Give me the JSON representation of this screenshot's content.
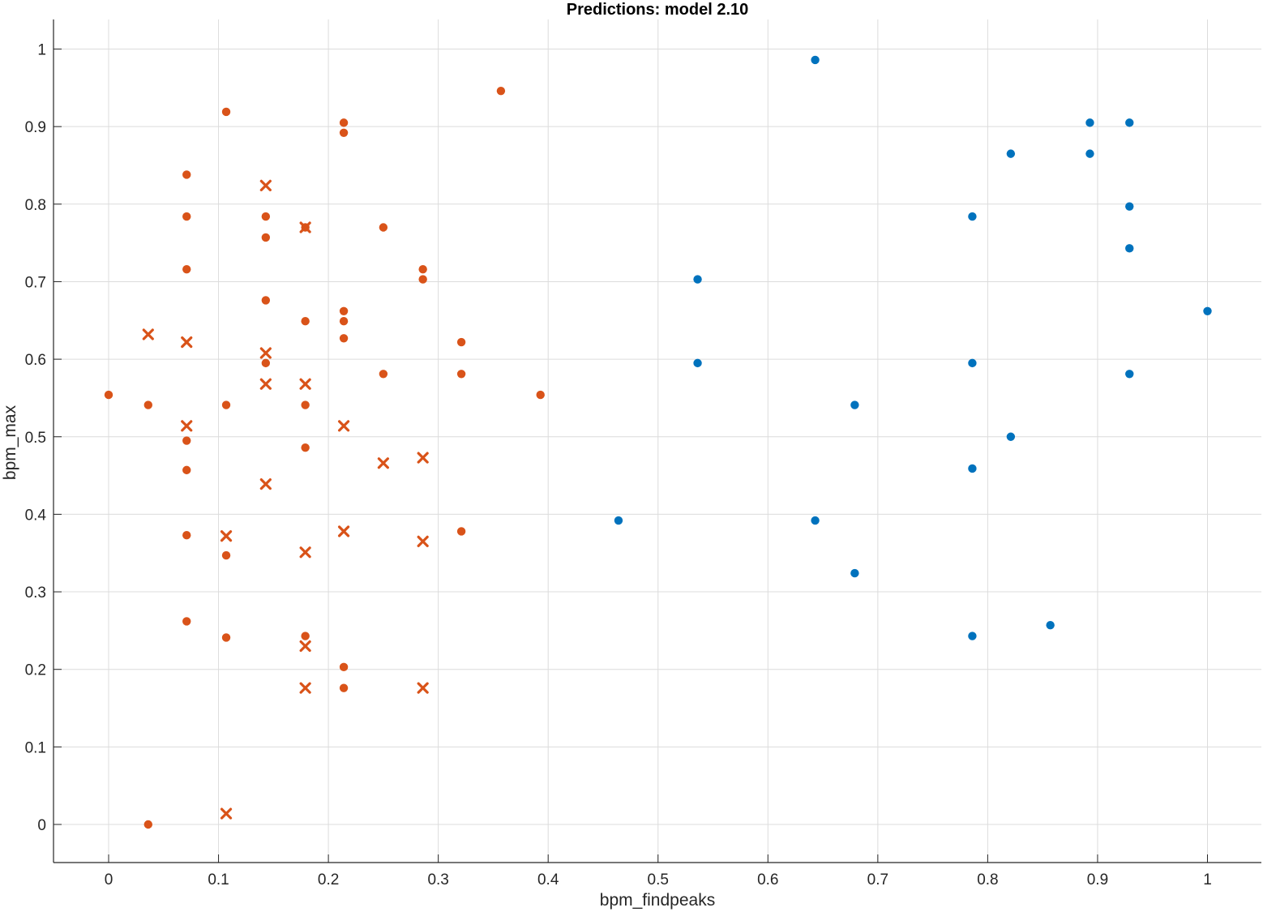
{
  "chart_data": {
    "type": "scatter",
    "title": "Predictions: model 2.10",
    "xlabel": "bpm_findpeaks",
    "ylabel": "bpm_max",
    "xlim": [
      -0.05,
      1.05
    ],
    "ylim": [
      -0.05,
      1.03
    ],
    "xticks": [
      "0",
      "0.1",
      "0.2",
      "0.3",
      "0.4",
      "0.5",
      "0.6",
      "0.7",
      "0.8",
      "0.9",
      "1"
    ],
    "yticks": [
      "0",
      "0.1",
      "0.2",
      "0.3",
      "0.4",
      "0.5",
      "0.6",
      "0.7",
      "0.8",
      "0.9",
      "1"
    ],
    "grid": true,
    "legend": "none",
    "colors": {
      "blue": "#0072bd",
      "orange": "#d95319"
    },
    "series": [
      {
        "marker": "dot",
        "color": "#0072bd",
        "points": [
          [
            0.643,
            0.986
          ],
          [
            0.536,
            0.703
          ],
          [
            0.536,
            0.595
          ],
          [
            0.464,
            0.392
          ],
          [
            0.679,
            0.541
          ],
          [
            0.643,
            0.392
          ],
          [
            0.679,
            0.324
          ],
          [
            0.786,
            0.784
          ],
          [
            0.786,
            0.595
          ],
          [
            0.786,
            0.459
          ],
          [
            0.786,
            0.243
          ],
          [
            0.821,
            0.865
          ],
          [
            0.821,
            0.5
          ],
          [
            0.857,
            0.257
          ],
          [
            0.893,
            0.905
          ],
          [
            0.893,
            0.865
          ],
          [
            0.929,
            0.905
          ],
          [
            0.929,
            0.797
          ],
          [
            0.929,
            0.743
          ],
          [
            0.929,
            0.581
          ],
          [
            1.0,
            0.662
          ]
        ]
      },
      {
        "marker": "dot",
        "color": "#d95319",
        "points": [
          [
            0.0,
            0.554
          ],
          [
            0.036,
            0.541
          ],
          [
            0.036,
            0.0
          ],
          [
            0.071,
            0.838
          ],
          [
            0.071,
            0.784
          ],
          [
            0.071,
            0.716
          ],
          [
            0.071,
            0.495
          ],
          [
            0.071,
            0.457
          ],
          [
            0.071,
            0.373
          ],
          [
            0.071,
            0.262
          ],
          [
            0.107,
            0.919
          ],
          [
            0.107,
            0.541
          ],
          [
            0.107,
            0.347
          ],
          [
            0.107,
            0.241
          ],
          [
            0.143,
            0.784
          ],
          [
            0.143,
            0.757
          ],
          [
            0.143,
            0.676
          ],
          [
            0.143,
            0.595
          ],
          [
            0.179,
            0.77
          ],
          [
            0.179,
            0.649
          ],
          [
            0.179,
            0.541
          ],
          [
            0.179,
            0.486
          ],
          [
            0.179,
            0.243
          ],
          [
            0.214,
            0.905
          ],
          [
            0.214,
            0.892
          ],
          [
            0.214,
            0.662
          ],
          [
            0.214,
            0.649
          ],
          [
            0.214,
            0.627
          ],
          [
            0.214,
            0.203
          ],
          [
            0.214,
            0.176
          ],
          [
            0.25,
            0.77
          ],
          [
            0.25,
            0.581
          ],
          [
            0.286,
            0.716
          ],
          [
            0.286,
            0.703
          ],
          [
            0.321,
            0.622
          ],
          [
            0.321,
            0.581
          ],
          [
            0.321,
            0.378
          ],
          [
            0.357,
            0.946
          ],
          [
            0.393,
            0.554
          ]
        ]
      },
      {
        "marker": "x",
        "color": "#d95319",
        "points": [
          [
            0.036,
            0.632
          ],
          [
            0.071,
            0.622
          ],
          [
            0.071,
            0.514
          ],
          [
            0.107,
            0.372
          ],
          [
            0.107,
            0.014
          ],
          [
            0.143,
            0.824
          ],
          [
            0.143,
            0.608
          ],
          [
            0.143,
            0.568
          ],
          [
            0.143,
            0.439
          ],
          [
            0.179,
            0.77
          ],
          [
            0.179,
            0.568
          ],
          [
            0.179,
            0.351
          ],
          [
            0.179,
            0.23
          ],
          [
            0.179,
            0.176
          ],
          [
            0.214,
            0.514
          ],
          [
            0.214,
            0.378
          ],
          [
            0.25,
            0.466
          ],
          [
            0.286,
            0.473
          ],
          [
            0.286,
            0.365
          ],
          [
            0.286,
            0.176
          ]
        ]
      }
    ]
  }
}
